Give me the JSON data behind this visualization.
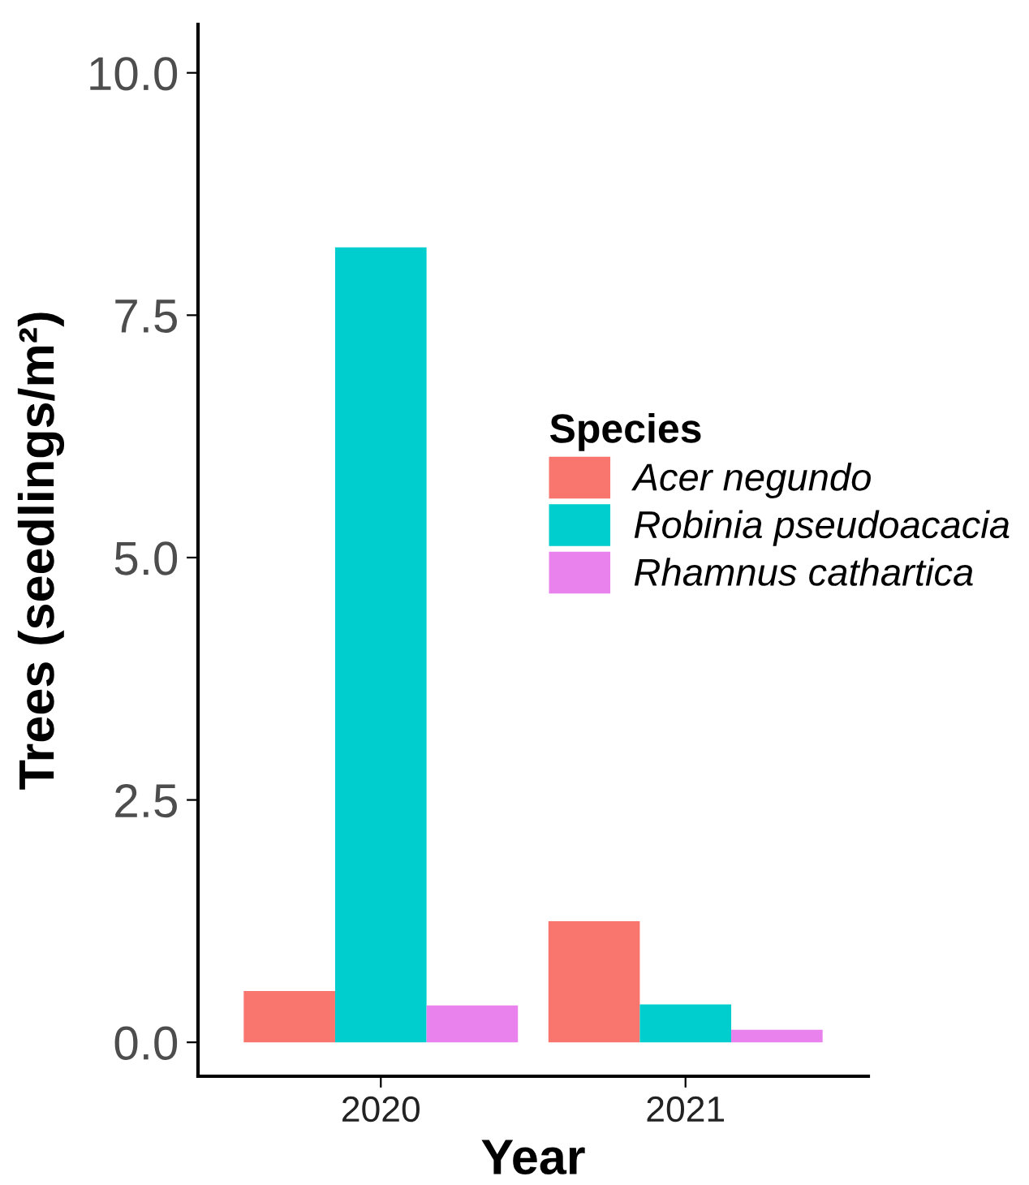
{
  "chart_data": {
    "type": "bar",
    "xlabel": "Year",
    "ylabel": "Trees (seedlings/m²)",
    "legend_title": "Species",
    "categories": [
      "2020",
      "2021"
    ],
    "series": [
      {
        "name": "Acer negundo",
        "color": "#f8766d",
        "values": [
          0.53,
          1.25
        ]
      },
      {
        "name": "Robinia pseudoacacia",
        "color": "#00cdcd",
        "values": [
          8.2,
          0.39
        ]
      },
      {
        "name": "Rhamnus cathartica",
        "color": "#ea82ee",
        "values": [
          0.38,
          0.13
        ]
      }
    ],
    "ylim": [
      -0.35,
      10.5
    ],
    "yticks": [
      {
        "value": 0,
        "label": "0.0"
      },
      {
        "value": 2.5,
        "label": "2.5"
      },
      {
        "value": 5,
        "label": "5.0"
      },
      {
        "value": 7.5,
        "label": "7.5"
      },
      {
        "value": 10,
        "label": "10.0"
      }
    ],
    "grid": false,
    "legend": "right"
  }
}
